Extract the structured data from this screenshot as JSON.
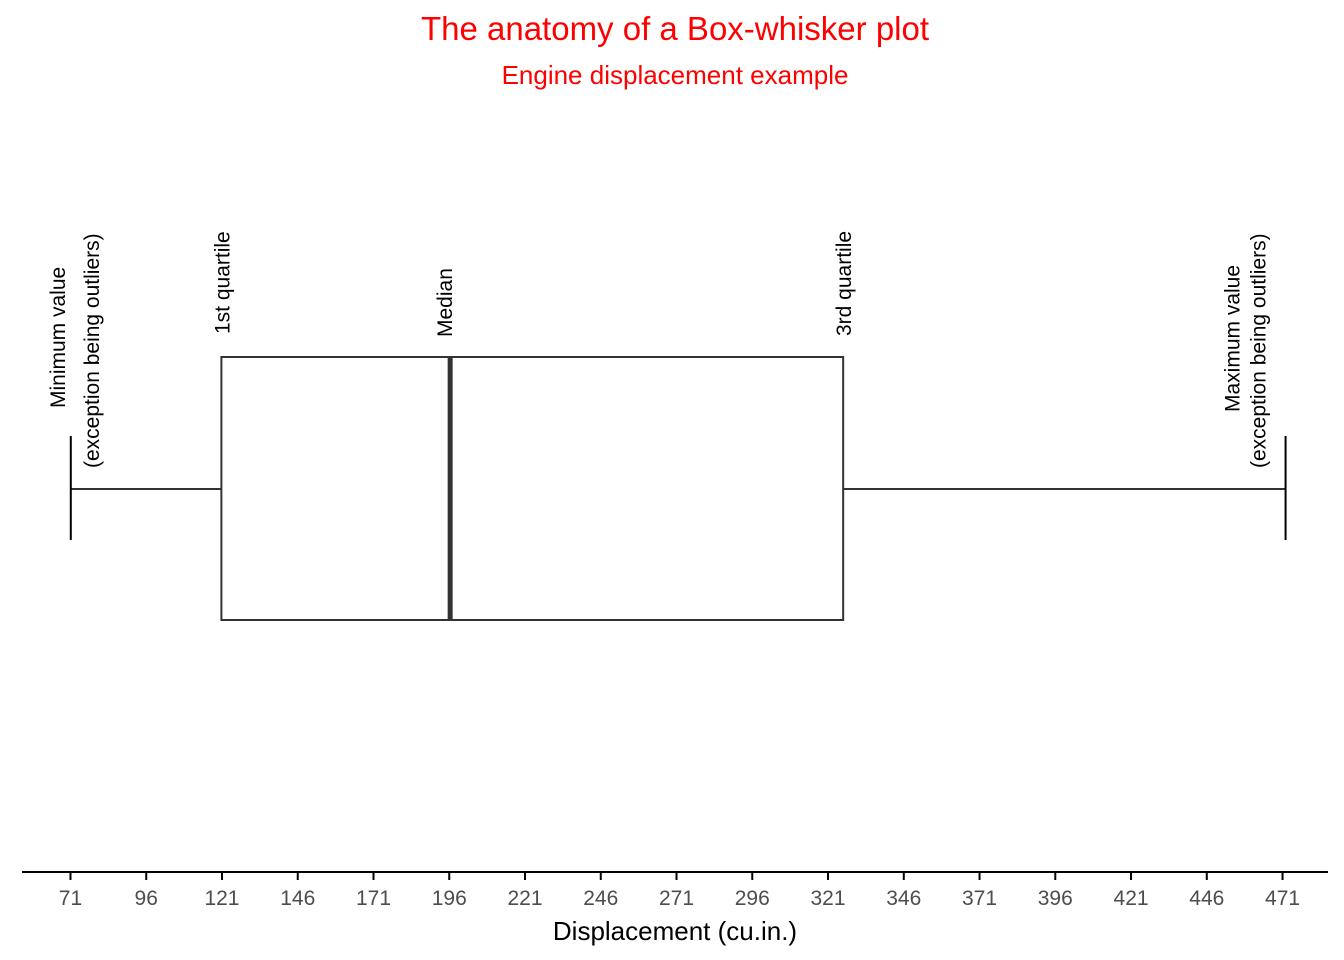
{
  "chart_data": {
    "type": "boxplot",
    "title": "The anatomy of a Box-whisker plot",
    "subtitle": "Engine displacement example",
    "xlabel": "Displacement (cu.in.)",
    "xlim": [
      55,
      486
    ],
    "ticks": [
      71,
      96,
      121,
      146,
      171,
      196,
      221,
      246,
      271,
      296,
      321,
      346,
      371,
      396,
      421,
      446,
      471
    ],
    "tick_labels": [
      "71",
      "96",
      "121",
      "146",
      "171",
      "196",
      "221",
      "246",
      "271",
      "296",
      "321",
      "346",
      "371",
      "396",
      "421",
      "446",
      "471"
    ],
    "stats": {
      "min": 71.1,
      "q1": 120.8,
      "median": 196.3,
      "q3": 326,
      "max": 472
    },
    "annotations": {
      "min_line1": "Minimum value",
      "min_line2": "(exception being outliers)",
      "q1": "1st quartile",
      "median": "Median",
      "q3": "3rd quartile",
      "max_line1": "Maximum value",
      "max_line2": "(exception being outliers)"
    },
    "colors": {
      "title": "#ff0000",
      "box_stroke": "#333333",
      "axis": "#000000",
      "tick_label": "#4d4d4d"
    },
    "grid": false
  }
}
